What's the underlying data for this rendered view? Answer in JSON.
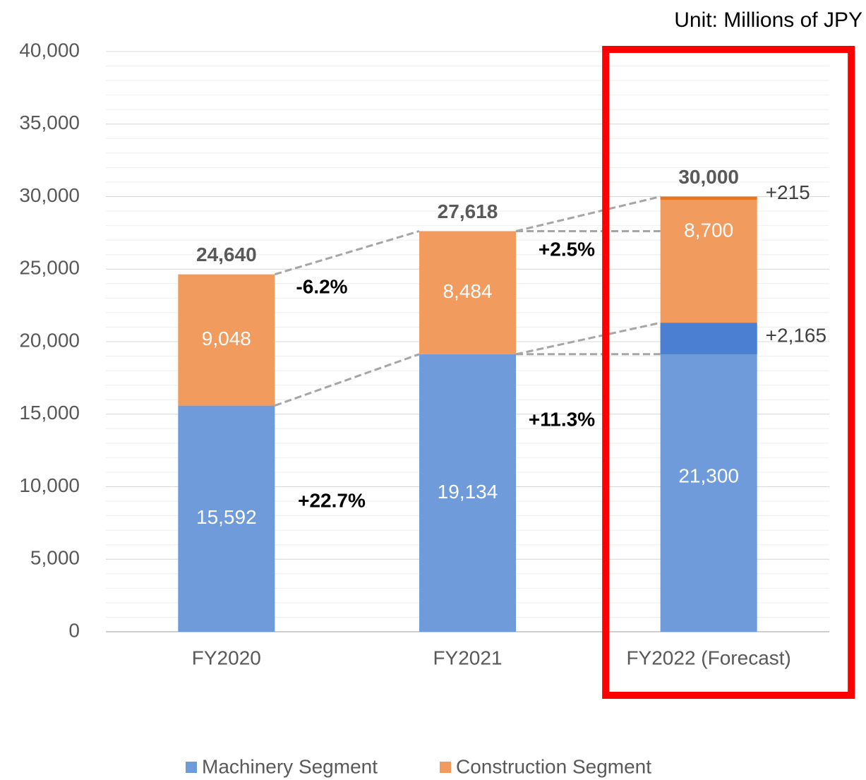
{
  "chart_data": {
    "type": "stacked_bar",
    "unit_note": "Unit: Millions of JPY",
    "categories": [
      "FY2020",
      "FY2021",
      "FY2022 (Forecast)"
    ],
    "series": [
      {
        "name": "Machinery Segment",
        "color": "#6f9bdb",
        "values": [
          15592,
          19134,
          21300
        ],
        "value_labels": [
          "15,592",
          "19,134",
          "21,300"
        ]
      },
      {
        "name": "Construction Segment",
        "color": "#f19b5f",
        "values": [
          9048,
          8484,
          8700
        ],
        "value_labels": [
          "9,048",
          "8,484",
          "8,700"
        ]
      }
    ],
    "totals": {
      "values": [
        24640,
        27618,
        30000
      ],
      "value_labels": [
        "24,640",
        "27,618",
        "30,000"
      ]
    },
    "increments": [
      {
        "series": 0,
        "category": 2,
        "color": "#4a7fd1",
        "value": 2165,
        "label": "+2,165"
      },
      {
        "series": 1,
        "category": 2,
        "color": "#e8731f",
        "value": 215,
        "label": "+215"
      }
    ],
    "growth_labels": [
      "-6.2%",
      "+22.7%",
      "+2.5%",
      "+11.3%"
    ],
    "ylim": [
      0,
      40000
    ],
    "yticks": [
      0,
      {
        "value": 5000,
        "label": "5,000"
      },
      {
        "value": 10000,
        "label": "10,000"
      },
      {
        "value": 15000,
        "label": "15,000"
      },
      {
        "value": 20000,
        "label": "20,000"
      },
      {
        "value": 25000,
        "label": "25,000"
      },
      {
        "value": 30000,
        "label": "30,000"
      },
      {
        "value": 35000,
        "label": "35,000"
      },
      {
        "value": 40000,
        "label": "40,000"
      }
    ],
    "grid": true,
    "minor_grid_step": 1000,
    "highlight": "FY2022 (Forecast)",
    "legend": "bottom"
  }
}
